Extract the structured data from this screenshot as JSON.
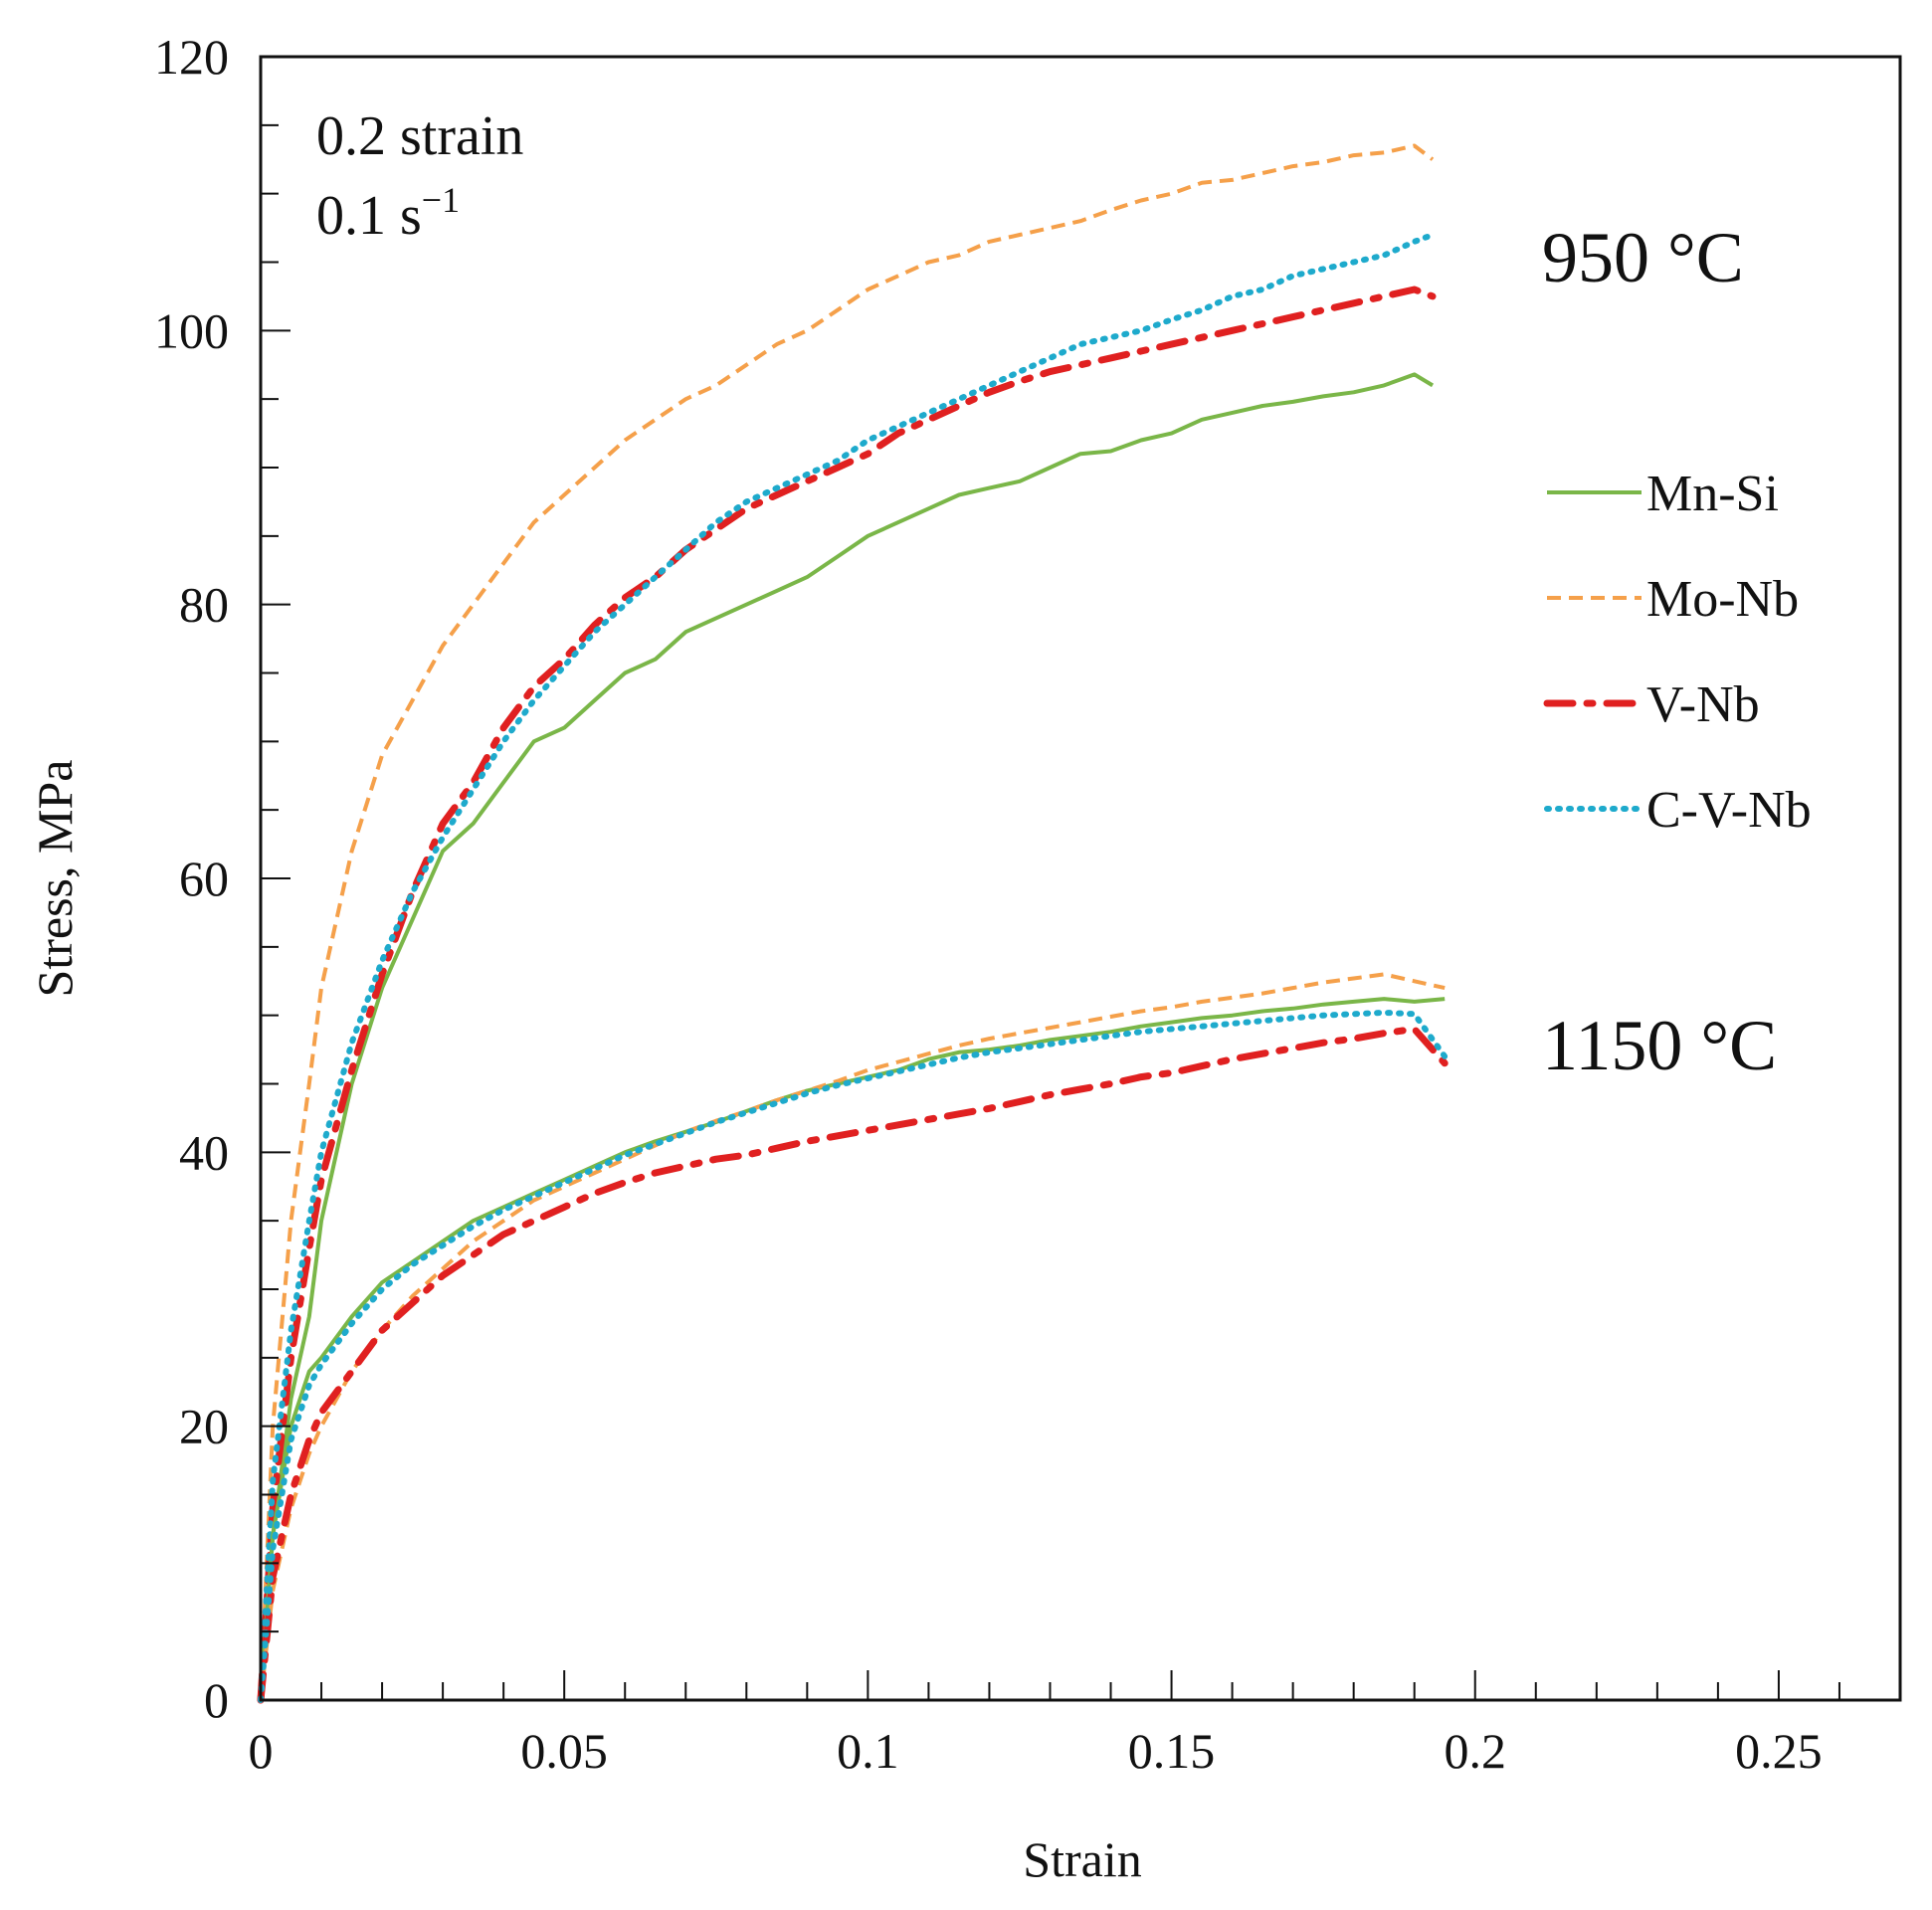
{
  "chart_data": {
    "type": "line",
    "title": "",
    "xlabel": "Strain",
    "ylabel": "Stress, MPa",
    "xlim": [
      0,
      0.27
    ],
    "ylim": [
      0,
      120
    ],
    "xticks": [
      0,
      0.05,
      0.1,
      0.15,
      0.2,
      0.25
    ],
    "xtick_labels": [
      "0",
      "0.05",
      "0.1",
      "0.15",
      "0.2",
      "0.25"
    ],
    "yticks": [
      0,
      20,
      40,
      60,
      80,
      100,
      120
    ],
    "ytick_labels": [
      "0",
      "20",
      "40",
      "60",
      "80",
      "100",
      "120"
    ],
    "grid": false,
    "legend_position": "right",
    "annotations": {
      "conditions_line1": "0.2 strain",
      "conditions_line2_base": "0.1 s",
      "conditions_line2_sup": "−1",
      "temp_high": "950 °C",
      "temp_low": "1150 °C"
    },
    "legend": [
      {
        "label": "Mn-Si",
        "color": "#7ab648",
        "style": "solid"
      },
      {
        "label": "Mo-Nb",
        "color": "#f5a04a",
        "style": "dashed"
      },
      {
        "label": "V-Nb",
        "color": "#e02020",
        "style": "dashdot"
      },
      {
        "label": "C-V-Nb",
        "color": "#1eaacc",
        "style": "dotted"
      }
    ],
    "series": [
      {
        "name": "Mn-Si",
        "temperature": "950 °C",
        "x": [
          0,
          0.002,
          0.005,
          0.008,
          0.01,
          0.015,
          0.02,
          0.025,
          0.03,
          0.035,
          0.04,
          0.045,
          0.05,
          0.055,
          0.06,
          0.065,
          0.07,
          0.075,
          0.08,
          0.085,
          0.09,
          0.095,
          0.1,
          0.105,
          0.11,
          0.115,
          0.12,
          0.125,
          0.13,
          0.135,
          0.14,
          0.145,
          0.15,
          0.155,
          0.16,
          0.165,
          0.17,
          0.175,
          0.18,
          0.185,
          0.19,
          0.193
        ],
        "y": [
          0,
          12,
          22,
          28,
          35,
          45,
          52,
          57,
          62,
          64,
          67,
          70,
          71,
          73,
          75,
          76,
          78,
          79,
          80,
          81,
          82,
          83.5,
          85,
          86,
          87,
          88,
          88.5,
          89,
          90,
          91,
          91.2,
          92,
          92.5,
          93.5,
          94,
          94.5,
          94.8,
          95.2,
          95.5,
          96,
          96.8,
          96
        ]
      },
      {
        "name": "Mo-Nb",
        "temperature": "950 °C",
        "x": [
          0,
          0.002,
          0.005,
          0.008,
          0.01,
          0.015,
          0.02,
          0.025,
          0.03,
          0.035,
          0.04,
          0.045,
          0.05,
          0.055,
          0.06,
          0.065,
          0.07,
          0.075,
          0.08,
          0.085,
          0.09,
          0.095,
          0.1,
          0.105,
          0.11,
          0.115,
          0.12,
          0.125,
          0.13,
          0.135,
          0.14,
          0.145,
          0.15,
          0.155,
          0.16,
          0.165,
          0.17,
          0.175,
          0.18,
          0.185,
          0.19,
          0.193
        ],
        "y": [
          0,
          20,
          35,
          45,
          52,
          62,
          69,
          73,
          77,
          80,
          83,
          86,
          88,
          90,
          92,
          93.5,
          95,
          96,
          97.5,
          99,
          100,
          101.5,
          103,
          104,
          105,
          105.5,
          106.5,
          107,
          107.5,
          108,
          108.8,
          109.5,
          110,
          110.8,
          111,
          111.5,
          112,
          112.3,
          112.8,
          113,
          113.5,
          112.5
        ]
      },
      {
        "name": "V-Nb",
        "temperature": "950 °C",
        "x": [
          0,
          0.002,
          0.005,
          0.008,
          0.01,
          0.015,
          0.02,
          0.025,
          0.03,
          0.035,
          0.04,
          0.045,
          0.05,
          0.055,
          0.06,
          0.065,
          0.07,
          0.075,
          0.08,
          0.085,
          0.09,
          0.095,
          0.1,
          0.105,
          0.11,
          0.115,
          0.12,
          0.125,
          0.13,
          0.135,
          0.14,
          0.145,
          0.15,
          0.155,
          0.16,
          0.165,
          0.17,
          0.175,
          0.18,
          0.185,
          0.19,
          0.193
        ],
        "y": [
          0,
          14,
          25,
          33,
          38,
          46,
          53,
          59,
          64,
          67,
          71,
          74,
          76,
          78.5,
          80.5,
          82,
          84,
          85.5,
          87,
          88,
          89,
          90,
          91,
          92.5,
          93.5,
          94.5,
          95.5,
          96.3,
          97,
          97.5,
          98,
          98.5,
          99,
          99.5,
          100,
          100.5,
          101,
          101.5,
          102,
          102.5,
          103,
          102.5
        ]
      },
      {
        "name": "C-V-Nb",
        "temperature": "950 °C",
        "x": [
          0,
          0.002,
          0.005,
          0.008,
          0.01,
          0.015,
          0.02,
          0.025,
          0.03,
          0.035,
          0.04,
          0.045,
          0.05,
          0.055,
          0.06,
          0.065,
          0.07,
          0.075,
          0.08,
          0.085,
          0.09,
          0.095,
          0.1,
          0.105,
          0.11,
          0.115,
          0.12,
          0.125,
          0.13,
          0.135,
          0.14,
          0.145,
          0.15,
          0.155,
          0.16,
          0.165,
          0.17,
          0.175,
          0.18,
          0.185,
          0.19,
          0.193
        ],
        "y": [
          0,
          16,
          27,
          35,
          40,
          48,
          54,
          59,
          63,
          66.5,
          70,
          73,
          75.5,
          78,
          80,
          82,
          84,
          86,
          87.5,
          88.5,
          89.5,
          90.5,
          92,
          93,
          94,
          95,
          96,
          97,
          98,
          99,
          99.5,
          100,
          100.8,
          101.5,
          102.5,
          103,
          104,
          104.5,
          105,
          105.5,
          106.5,
          107
        ]
      },
      {
        "name": "Mn-Si",
        "temperature": "1150 °C",
        "x": [
          0,
          0.002,
          0.005,
          0.008,
          0.01,
          0.015,
          0.02,
          0.025,
          0.03,
          0.035,
          0.04,
          0.045,
          0.05,
          0.055,
          0.06,
          0.065,
          0.07,
          0.075,
          0.08,
          0.085,
          0.09,
          0.095,
          0.1,
          0.105,
          0.11,
          0.115,
          0.12,
          0.125,
          0.13,
          0.135,
          0.14,
          0.145,
          0.15,
          0.155,
          0.16,
          0.165,
          0.17,
          0.175,
          0.18,
          0.185,
          0.19,
          0.195
        ],
        "y": [
          0,
          12,
          20,
          24,
          25,
          28,
          30.5,
          32,
          33.5,
          35,
          36,
          37,
          38,
          39,
          40,
          40.8,
          41.5,
          42.2,
          43,
          43.8,
          44.5,
          45,
          45.5,
          46,
          46.8,
          47.3,
          47.5,
          47.8,
          48.2,
          48.5,
          48.8,
          49.2,
          49.5,
          49.8,
          50,
          50.3,
          50.5,
          50.8,
          51,
          51.2,
          51,
          51.2
        ]
      },
      {
        "name": "Mo-Nb",
        "temperature": "1150 °C",
        "x": [
          0,
          0.002,
          0.005,
          0.008,
          0.01,
          0.015,
          0.02,
          0.025,
          0.03,
          0.035,
          0.04,
          0.045,
          0.05,
          0.055,
          0.06,
          0.065,
          0.07,
          0.075,
          0.08,
          0.085,
          0.09,
          0.095,
          0.1,
          0.105,
          0.11,
          0.115,
          0.12,
          0.125,
          0.13,
          0.135,
          0.14,
          0.145,
          0.15,
          0.155,
          0.16,
          0.165,
          0.17,
          0.175,
          0.18,
          0.185,
          0.19,
          0.195
        ],
        "y": [
          0,
          8,
          14,
          18,
          20,
          24,
          27,
          29.5,
          31.5,
          33.5,
          35,
          36.5,
          37.5,
          38.5,
          39.5,
          40.5,
          41.5,
          42.3,
          43,
          43.8,
          44.5,
          45.2,
          46,
          46.6,
          47.2,
          47.8,
          48.3,
          48.7,
          49.1,
          49.5,
          49.9,
          50.3,
          50.6,
          51,
          51.3,
          51.6,
          52,
          52.4,
          52.7,
          53,
          52.5,
          52
        ]
      },
      {
        "name": "V-Nb",
        "temperature": "1150 °C",
        "x": [
          0,
          0.002,
          0.005,
          0.008,
          0.01,
          0.015,
          0.02,
          0.025,
          0.03,
          0.035,
          0.04,
          0.045,
          0.05,
          0.055,
          0.06,
          0.065,
          0.07,
          0.075,
          0.08,
          0.085,
          0.09,
          0.095,
          0.1,
          0.105,
          0.11,
          0.115,
          0.12,
          0.125,
          0.13,
          0.135,
          0.14,
          0.145,
          0.15,
          0.155,
          0.16,
          0.165,
          0.17,
          0.175,
          0.18,
          0.185,
          0.19,
          0.195
        ],
        "y": [
          0,
          9,
          15,
          19,
          21,
          24,
          27,
          29,
          31,
          32.5,
          34,
          35,
          36,
          37,
          37.8,
          38.5,
          39,
          39.5,
          39.8,
          40.3,
          40.8,
          41.2,
          41.6,
          42,
          42.4,
          42.8,
          43.2,
          43.7,
          44.2,
          44.6,
          45,
          45.5,
          45.8,
          46.3,
          46.8,
          47.2,
          47.6,
          48,
          48.3,
          48.7,
          49,
          46.5
        ]
      },
      {
        "name": "C-V-Nb",
        "temperature": "1150 °C",
        "x": [
          0,
          0.002,
          0.005,
          0.008,
          0.01,
          0.015,
          0.02,
          0.025,
          0.03,
          0.035,
          0.04,
          0.045,
          0.05,
          0.055,
          0.06,
          0.065,
          0.07,
          0.075,
          0.08,
          0.085,
          0.09,
          0.095,
          0.1,
          0.105,
          0.11,
          0.115,
          0.12,
          0.125,
          0.13,
          0.135,
          0.14,
          0.145,
          0.15,
          0.155,
          0.16,
          0.165,
          0.17,
          0.175,
          0.18,
          0.185,
          0.19,
          0.195
        ],
        "y": [
          0,
          11,
          19,
          23,
          24.5,
          27.5,
          30,
          31.8,
          33.2,
          34.6,
          35.8,
          36.8,
          37.8,
          38.8,
          39.8,
          40.6,
          41.4,
          42.2,
          42.9,
          43.6,
          44.3,
          44.9,
          45.4,
          45.9,
          46.4,
          46.9,
          47.3,
          47.6,
          47.9,
          48.2,
          48.5,
          48.8,
          49,
          49.2,
          49.4,
          49.6,
          49.8,
          50,
          50.1,
          50.2,
          50.1,
          47
        ]
      }
    ]
  }
}
